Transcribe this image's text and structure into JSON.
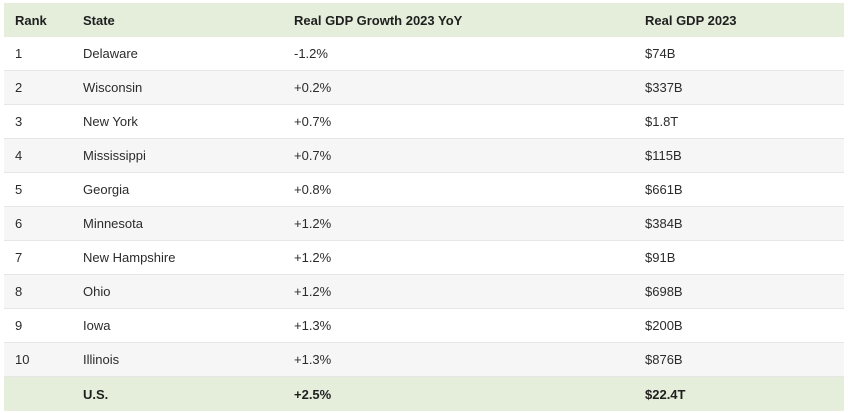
{
  "table": {
    "headers": {
      "rank": "Rank",
      "state": "State",
      "growth": "Real GDP Growth 2023 YoY",
      "gdp": "Real GDP 2023"
    },
    "rows": [
      {
        "rank": "1",
        "state": "Delaware",
        "growth": "-1.2%",
        "gdp": "$74B"
      },
      {
        "rank": "2",
        "state": "Wisconsin",
        "growth": "+0.2%",
        "gdp": "$337B"
      },
      {
        "rank": "3",
        "state": "New York",
        "growth": "+0.7%",
        "gdp": "$1.8T"
      },
      {
        "rank": "4",
        "state": "Mississippi",
        "growth": "+0.7%",
        "gdp": "$115B"
      },
      {
        "rank": "5",
        "state": "Georgia",
        "growth": "+0.8%",
        "gdp": "$661B"
      },
      {
        "rank": "6",
        "state": "Minnesota",
        "growth": "+1.2%",
        "gdp": "$384B"
      },
      {
        "rank": "7",
        "state": "New Hampshire",
        "growth": "+1.2%",
        "gdp": "$91B"
      },
      {
        "rank": "8",
        "state": "Ohio",
        "growth": "+1.2%",
        "gdp": "$698B"
      },
      {
        "rank": "9",
        "state": "Iowa",
        "growth": "+1.3%",
        "gdp": "$200B"
      },
      {
        "rank": "10",
        "state": "Illinois",
        "growth": "+1.3%",
        "gdp": "$876B"
      }
    ],
    "total": {
      "rank": "",
      "state": "U.S.",
      "growth": "+2.5%",
      "gdp": "$22.4T"
    }
  },
  "colors": {
    "header_bg": "#e4eedb",
    "alt_row_bg": "#f6f6f6",
    "text": "#2b2b2b"
  }
}
